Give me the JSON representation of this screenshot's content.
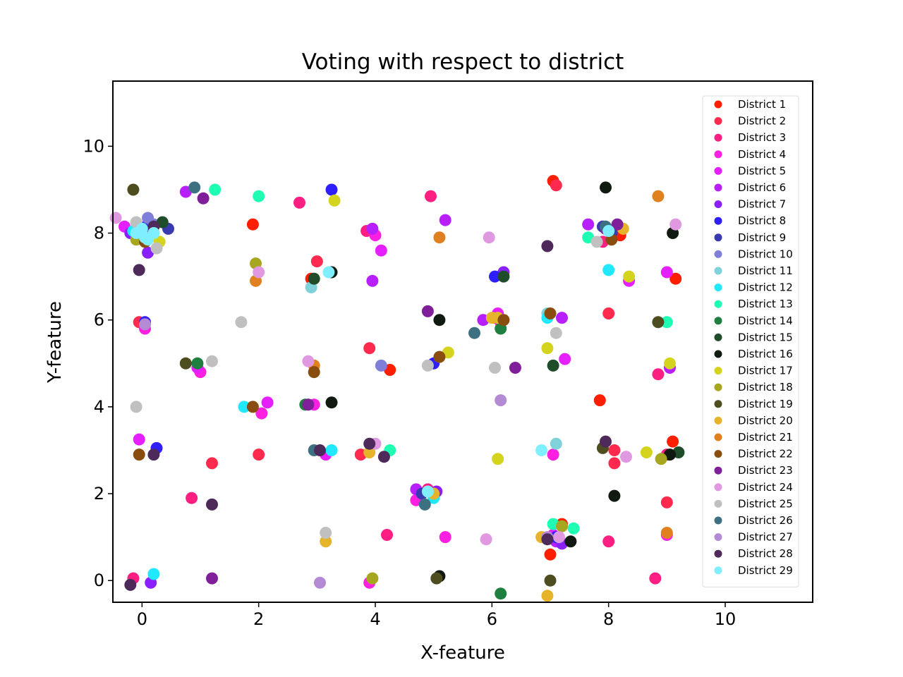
{
  "chart_data": {
    "type": "scatter",
    "title": "Voting with respect to district",
    "xlabel": "X-feature",
    "ylabel": "Y-feature",
    "xlim": [
      -0.5,
      11.5
    ],
    "ylim": [
      -0.5,
      11.5
    ],
    "xticks": [
      0,
      2,
      4,
      6,
      8,
      10
    ],
    "yticks": [
      0,
      2,
      4,
      6,
      8,
      10
    ],
    "grid": false,
    "legend_position": "upper-right",
    "series": [
      {
        "name": "District 1",
        "color": "#ff1f00",
        "points": [
          [
            -0.1,
            7.9
          ],
          [
            1.9,
            8.2
          ],
          [
            2.9,
            6.95
          ],
          [
            4.25,
            4.85
          ],
          [
            7.05,
            9.2
          ],
          [
            7.85,
            4.15
          ],
          [
            8.2,
            7.95
          ],
          [
            9.1,
            3.2
          ],
          [
            9.15,
            6.95
          ],
          [
            7.0,
            0.6
          ],
          [
            7.2,
            1.3
          ],
          [
            0.0,
            8.1
          ]
        ]
      },
      {
        "name": "District 2",
        "color": "#ff2a4d",
        "points": [
          [
            -0.05,
            5.95
          ],
          [
            1.2,
            2.7
          ],
          [
            2.0,
            2.9
          ],
          [
            3.0,
            7.35
          ],
          [
            3.75,
            2.9
          ],
          [
            3.9,
            5.35
          ],
          [
            7.1,
            9.1
          ],
          [
            8.0,
            6.15
          ],
          [
            8.1,
            2.7
          ],
          [
            8.1,
            3.0
          ],
          [
            9.0,
            1.8
          ],
          [
            0.05,
            8.0
          ]
        ]
      },
      {
        "name": "District 3",
        "color": "#ff1f82",
        "points": [
          [
            -0.15,
            0.05
          ],
          [
            0.85,
            1.9
          ],
          [
            2.7,
            8.7
          ],
          [
            3.85,
            8.05
          ],
          [
            4.2,
            1.05
          ],
          [
            4.9,
            2.1
          ],
          [
            4.95,
            8.85
          ],
          [
            6.05,
            6.05
          ],
          [
            7.9,
            7.8
          ],
          [
            8.0,
            0.9
          ],
          [
            8.8,
            0.05
          ],
          [
            8.85,
            4.75
          ],
          [
            9.0,
            2.9
          ]
        ]
      },
      {
        "name": "District 4",
        "color": "#ff1fe0",
        "points": [
          [
            0.05,
            5.8
          ],
          [
            1.0,
            4.8
          ],
          [
            2.05,
            3.85
          ],
          [
            2.95,
            4.05
          ],
          [
            3.9,
            -0.05
          ],
          [
            4.0,
            7.95
          ],
          [
            4.7,
            1.85
          ],
          [
            5.2,
            1.0
          ],
          [
            6.15,
            5.95
          ],
          [
            7.05,
            2.9
          ],
          [
            9.0,
            1.05
          ],
          [
            0.1,
            7.9
          ]
        ]
      },
      {
        "name": "District 5",
        "color": "#e51fff",
        "points": [
          [
            -0.05,
            3.25
          ],
          [
            0.95,
            4.9
          ],
          [
            2.15,
            4.1
          ],
          [
            3.15,
            2.9
          ],
          [
            4.1,
            7.6
          ],
          [
            5.0,
            1.95
          ],
          [
            6.1,
            6.15
          ],
          [
            7.25,
            5.1
          ],
          [
            8.35,
            6.9
          ],
          [
            9.0,
            7.1
          ],
          [
            7.05,
            1.05
          ],
          [
            -0.3,
            8.15
          ]
        ]
      },
      {
        "name": "District 6",
        "color": "#b81fff",
        "points": [
          [
            0.75,
            8.95
          ],
          [
            3.95,
            6.9
          ],
          [
            3.95,
            8.1
          ],
          [
            4.7,
            2.1
          ],
          [
            5.2,
            8.3
          ],
          [
            5.85,
            6.0
          ],
          [
            7.2,
            6.05
          ],
          [
            7.65,
            8.2
          ],
          [
            8.0,
            8.05
          ],
          [
            9.05,
            4.9
          ],
          [
            0.15,
            8.05
          ],
          [
            7.1,
            0.9
          ]
        ]
      },
      {
        "name": "District 7",
        "color": "#8a1fff",
        "points": [
          [
            0.1,
            7.55
          ],
          [
            0.15,
            -0.05
          ],
          [
            5.05,
            2.05
          ],
          [
            6.2,
            7.1
          ],
          [
            7.95,
            8.1
          ],
          [
            7.2,
            0.85
          ],
          [
            -0.2,
            8.0
          ]
        ]
      },
      {
        "name": "District 8",
        "color": "#2f1fff",
        "points": [
          [
            3.25,
            9.0
          ],
          [
            0.25,
            3.05
          ],
          [
            0.05,
            5.95
          ],
          [
            5.0,
            5.0
          ],
          [
            6.05,
            7.0
          ],
          [
            7.1,
            1.0
          ],
          [
            0.1,
            8.2
          ]
        ]
      },
      {
        "name": "District 9",
        "color": "#3a3ab0",
        "points": [
          [
            0.45,
            8.1
          ],
          [
            4.8,
            2.0
          ],
          [
            7.9,
            8.15
          ],
          [
            8.05,
            8.0
          ]
        ]
      },
      {
        "name": "District 10",
        "color": "#7f7fd9",
        "points": [
          [
            0.1,
            8.35
          ],
          [
            4.1,
            4.95
          ],
          [
            0.2,
            8.2
          ]
        ]
      },
      {
        "name": "District 11",
        "color": "#7fd2d9",
        "points": [
          [
            2.9,
            6.75
          ],
          [
            7.1,
            3.15
          ],
          [
            6.95,
            6.15
          ]
        ]
      },
      {
        "name": "District 12",
        "color": "#1fe8ff",
        "points": [
          [
            0.2,
            0.15
          ],
          [
            1.75,
            4.0
          ],
          [
            3.25,
            3.0
          ],
          [
            5.0,
            1.9
          ],
          [
            8.0,
            7.15
          ],
          [
            6.95,
            6.05
          ],
          [
            -0.15,
            8.05
          ]
        ]
      },
      {
        "name": "District 13",
        "color": "#1fffb3",
        "points": [
          [
            1.25,
            9.0
          ],
          [
            2.0,
            8.85
          ],
          [
            4.25,
            3.0
          ],
          [
            7.05,
            1.3
          ],
          [
            7.65,
            7.9
          ],
          [
            9.0,
            5.95
          ],
          [
            7.4,
            1.2
          ]
        ]
      },
      {
        "name": "District 14",
        "color": "#1f7f3f",
        "points": [
          [
            0.95,
            5.0
          ],
          [
            2.8,
            4.05
          ],
          [
            6.15,
            -0.3
          ],
          [
            6.15,
            5.8
          ]
        ]
      },
      {
        "name": "District 15",
        "color": "#1f4d2a",
        "points": [
          [
            0.35,
            8.25
          ],
          [
            2.95,
            6.95
          ],
          [
            6.2,
            7.0
          ],
          [
            7.05,
            4.95
          ],
          [
            9.2,
            2.95
          ]
        ]
      },
      {
        "name": "District 16",
        "color": "#101a10",
        "points": [
          [
            3.25,
            7.1
          ],
          [
            3.25,
            4.1
          ],
          [
            5.1,
            6.0
          ],
          [
            5.1,
            0.1
          ],
          [
            7.35,
            0.9
          ],
          [
            7.95,
            9.05
          ],
          [
            8.1,
            1.95
          ],
          [
            9.1,
            8.0
          ],
          [
            9.05,
            2.9
          ]
        ]
      },
      {
        "name": "District 17",
        "color": "#d4d41f",
        "points": [
          [
            0.3,
            7.8
          ],
          [
            3.3,
            8.75
          ],
          [
            5.25,
            5.25
          ],
          [
            6.95,
            5.35
          ],
          [
            8.35,
            7.0
          ],
          [
            8.65,
            2.95
          ],
          [
            9.05,
            5.0
          ],
          [
            6.1,
            2.8
          ]
        ]
      },
      {
        "name": "District 18",
        "color": "#a6a61f",
        "points": [
          [
            1.95,
            7.3
          ],
          [
            3.95,
            0.05
          ],
          [
            7.2,
            1.25
          ],
          [
            8.9,
            2.8
          ],
          [
            -0.1,
            7.85
          ]
        ]
      },
      {
        "name": "District 19",
        "color": "#4d4d1f",
        "points": [
          [
            -0.15,
            9.0
          ],
          [
            0.75,
            5.0
          ],
          [
            5.05,
            0.05
          ],
          [
            7.9,
            3.05
          ],
          [
            8.85,
            5.95
          ],
          [
            7.0,
            0.0
          ]
        ]
      },
      {
        "name": "District 20",
        "color": "#e6b42a",
        "points": [
          [
            3.9,
            2.95
          ],
          [
            3.15,
            0.9
          ],
          [
            5.0,
            2.0
          ],
          [
            6.0,
            6.05
          ],
          [
            6.85,
            1.0
          ],
          [
            8.25,
            8.1
          ],
          [
            6.1,
            6.05
          ],
          [
            6.95,
            -0.35
          ]
        ]
      },
      {
        "name": "District 21",
        "color": "#e0801f",
        "points": [
          [
            1.95,
            6.9
          ],
          [
            2.95,
            4.95
          ],
          [
            5.1,
            7.9
          ],
          [
            8.85,
            8.85
          ],
          [
            9.0,
            1.1
          ]
        ]
      },
      {
        "name": "District 22",
        "color": "#8a4d10",
        "points": [
          [
            -0.05,
            2.9
          ],
          [
            0.05,
            7.8
          ],
          [
            1.9,
            4.0
          ],
          [
            2.95,
            4.8
          ],
          [
            5.1,
            5.15
          ],
          [
            6.2,
            6.0
          ],
          [
            7.0,
            6.15
          ],
          [
            8.05,
            7.85
          ]
        ]
      },
      {
        "name": "District 23",
        "color": "#7f1f99",
        "points": [
          [
            1.05,
            8.8
          ],
          [
            1.2,
            0.05
          ],
          [
            2.85,
            4.05
          ],
          [
            4.9,
            6.2
          ],
          [
            6.4,
            4.9
          ],
          [
            7.95,
            8.1
          ],
          [
            8.15,
            8.2
          ]
        ]
      },
      {
        "name": "District 24",
        "color": "#e099e0",
        "points": [
          [
            -0.45,
            8.35
          ],
          [
            2.0,
            7.1
          ],
          [
            2.85,
            5.05
          ],
          [
            4.0,
            3.15
          ],
          [
            5.9,
            0.95
          ],
          [
            5.95,
            7.9
          ],
          [
            8.3,
            2.85
          ],
          [
            9.15,
            8.2
          ],
          [
            7.15,
            1.0
          ]
        ]
      },
      {
        "name": "District 25",
        "color": "#c0c0c0",
        "points": [
          [
            -0.1,
            4.0
          ],
          [
            1.2,
            5.05
          ],
          [
            1.7,
            5.95
          ],
          [
            3.15,
            1.1
          ],
          [
            4.9,
            4.95
          ],
          [
            6.05,
            4.9
          ],
          [
            7.1,
            5.7
          ],
          [
            7.8,
            7.8
          ],
          [
            0.25,
            7.65
          ],
          [
            -0.1,
            8.25
          ]
        ]
      },
      {
        "name": "District 26",
        "color": "#3d7080",
        "points": [
          [
            0.9,
            9.05
          ],
          [
            2.95,
            3.0
          ],
          [
            4.85,
            1.75
          ],
          [
            5.7,
            5.7
          ],
          [
            7.95,
            8.15
          ]
        ]
      },
      {
        "name": "District 27",
        "color": "#b48ad4",
        "points": [
          [
            6.15,
            4.15
          ],
          [
            6.95,
            1.0
          ],
          [
            3.05,
            -0.05
          ],
          [
            0.05,
            5.9
          ]
        ]
      },
      {
        "name": "District 28",
        "color": "#4d2a5a",
        "points": [
          [
            -0.05,
            7.15
          ],
          [
            -0.2,
            -0.1
          ],
          [
            0.2,
            2.9
          ],
          [
            1.2,
            1.75
          ],
          [
            3.05,
            3.0
          ],
          [
            3.9,
            3.15
          ],
          [
            4.15,
            2.85
          ],
          [
            6.95,
            7.7
          ],
          [
            7.95,
            3.2
          ],
          [
            6.95,
            0.95
          ],
          [
            0.2,
            8.15
          ]
        ]
      },
      {
        "name": "District 29",
        "color": "#7fefff",
        "points": [
          [
            0.0,
            8.1
          ],
          [
            0.1,
            7.85
          ],
          [
            0.2,
            8.0
          ],
          [
            -0.1,
            8.0
          ],
          [
            0.05,
            7.9
          ],
          [
            3.2,
            7.1
          ],
          [
            4.9,
            2.05
          ],
          [
            6.85,
            3.0
          ],
          [
            8.0,
            8.05
          ]
        ]
      }
    ]
  }
}
